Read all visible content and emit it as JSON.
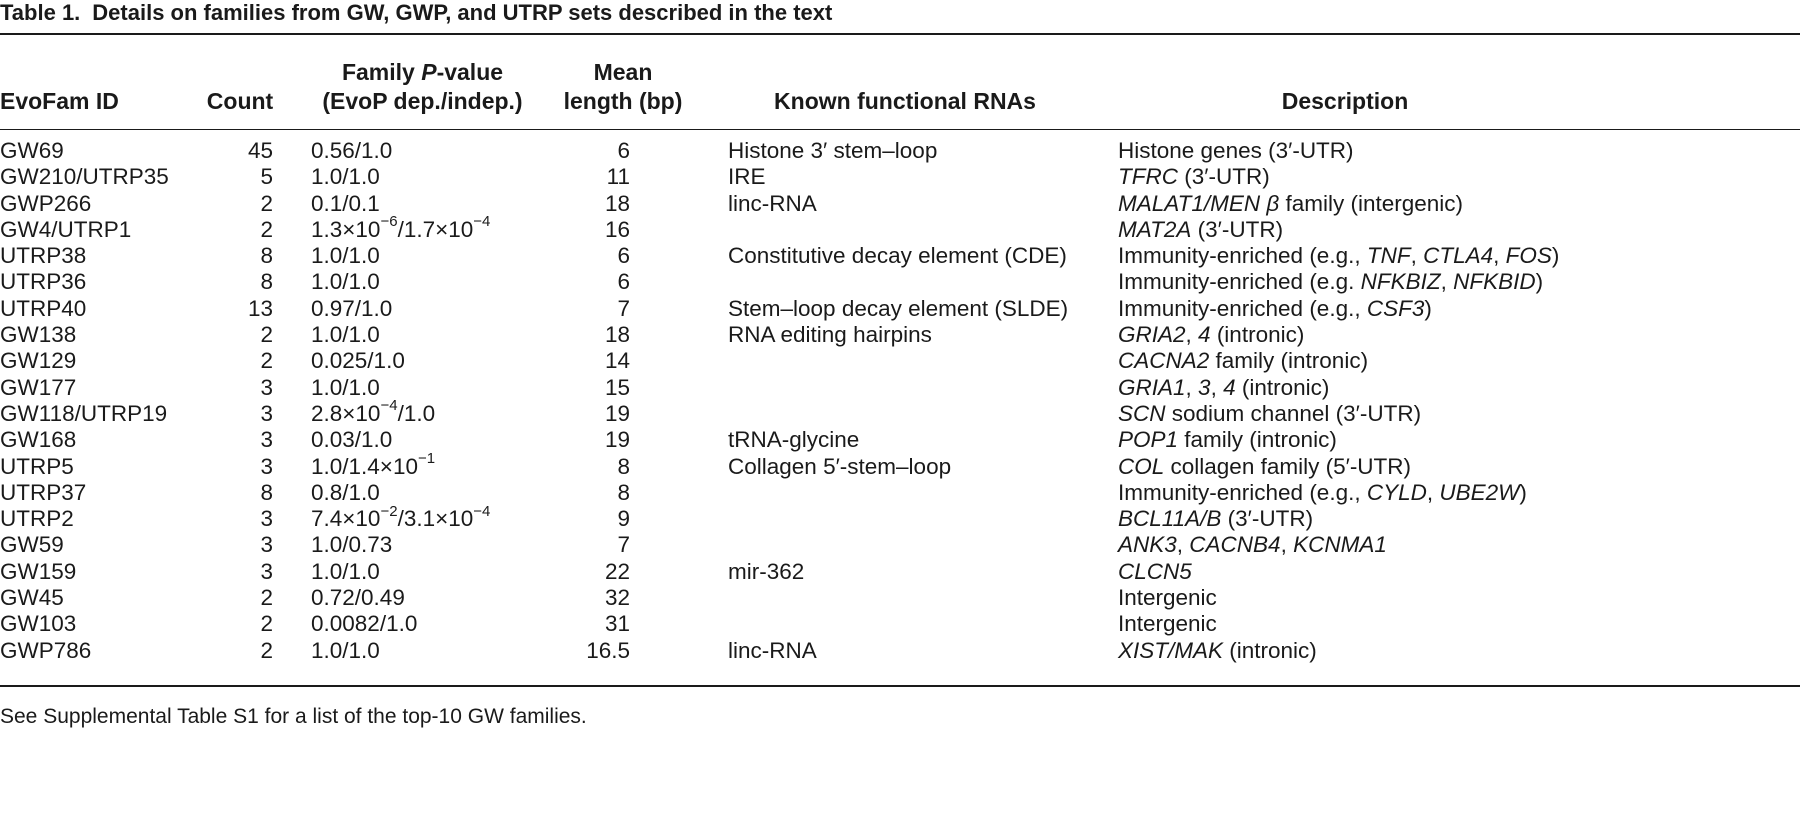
{
  "caption": {
    "label": "Table 1.",
    "title": "Details on families from GW, GWP, and UTRP sets described in the text"
  },
  "headers": {
    "id": "EvoFam ID",
    "count": "Count",
    "pval_line1": "Family P-value",
    "pval_line2": "(EvoP dep./indep.)",
    "len_line1": "Mean",
    "len_line2": "length (bp)",
    "known": "Known functional RNAs",
    "desc": "Description"
  },
  "rows": [
    {
      "id": "GW69",
      "count": "45",
      "pval": [
        {
          "t": "0.56/1.0"
        }
      ],
      "len": "6",
      "known": "Histone 3′ stem–loop",
      "desc": [
        {
          "t": "Histone genes (3′-UTR)"
        }
      ]
    },
    {
      "id": "GW210/UTRP35",
      "count": "5",
      "pval": [
        {
          "t": "1.0/1.0"
        }
      ],
      "len": "11",
      "known": "IRE",
      "desc": [
        {
          "t": "TFRC",
          "i": true
        },
        {
          "t": " (3′-UTR)"
        }
      ]
    },
    {
      "id": "GWP266",
      "count": "2",
      "pval": [
        {
          "t": "0.1/0.1"
        }
      ],
      "len": "18",
      "known": "linc-RNA",
      "desc": [
        {
          "t": "MALAT1/MEN β",
          "i": true
        },
        {
          "t": " family (intergenic)"
        }
      ]
    },
    {
      "id": "GW4/UTRP1",
      "count": "2",
      "pval": [
        {
          "t": "1.3×10"
        },
        {
          "t": "−6",
          "s": true
        },
        {
          "t": "/1.7×10"
        },
        {
          "t": "−4",
          "s": true
        }
      ],
      "len": "16",
      "known": "",
      "desc": [
        {
          "t": "MAT2A",
          "i": true
        },
        {
          "t": " (3′-UTR)"
        }
      ]
    },
    {
      "id": "UTRP38",
      "count": "8",
      "pval": [
        {
          "t": "1.0/1.0"
        }
      ],
      "len": "6",
      "known": "Constitutive decay element (CDE)",
      "desc": [
        {
          "t": "Immunity-enriched (e.g., "
        },
        {
          "t": "TNF",
          "i": true
        },
        {
          "t": ", "
        },
        {
          "t": "CTLA4",
          "i": true
        },
        {
          "t": ", "
        },
        {
          "t": "FOS",
          "i": true
        },
        {
          "t": ")"
        }
      ]
    },
    {
      "id": "UTRP36",
      "count": "8",
      "pval": [
        {
          "t": "1.0/1.0"
        }
      ],
      "len": "6",
      "known": "",
      "desc": [
        {
          "t": "Immunity-enriched (e.g. "
        },
        {
          "t": "NFKBIZ",
          "i": true
        },
        {
          "t": ", "
        },
        {
          "t": "NFKBID",
          "i": true
        },
        {
          "t": ")"
        }
      ]
    },
    {
      "id": "UTRP40",
      "count": "13",
      "pval": [
        {
          "t": "0.97/1.0"
        }
      ],
      "len": "7",
      "known": "Stem–loop decay element (SLDE)",
      "desc": [
        {
          "t": "Immunity-enriched (e.g., "
        },
        {
          "t": "CSF3",
          "i": true
        },
        {
          "t": ")"
        }
      ]
    },
    {
      "id": "GW138",
      "count": "2",
      "pval": [
        {
          "t": "1.0/1.0"
        }
      ],
      "len": "18",
      "known": "RNA editing hairpins",
      "desc": [
        {
          "t": "GRIA2",
          "i": true
        },
        {
          "t": ", "
        },
        {
          "t": "4",
          "i": true
        },
        {
          "t": " (intronic)"
        }
      ]
    },
    {
      "id": "GW129",
      "count": "2",
      "pval": [
        {
          "t": "0.025/1.0"
        }
      ],
      "len": "14",
      "known": "",
      "desc": [
        {
          "t": "CACNA2",
          "i": true
        },
        {
          "t": " family (intronic)"
        }
      ]
    },
    {
      "id": "GW177",
      "count": "3",
      "pval": [
        {
          "t": "1.0/1.0"
        }
      ],
      "len": "15",
      "known": "",
      "desc": [
        {
          "t": "GRIA1",
          "i": true
        },
        {
          "t": ", "
        },
        {
          "t": "3",
          "i": true
        },
        {
          "t": ", "
        },
        {
          "t": "4",
          "i": true
        },
        {
          "t": " (intronic)"
        }
      ]
    },
    {
      "id": "GW118/UTRP19",
      "count": "3",
      "pval": [
        {
          "t": "2.8×10"
        },
        {
          "t": "−4",
          "s": true
        },
        {
          "t": "/1.0"
        }
      ],
      "len": "19",
      "known": "",
      "desc": [
        {
          "t": "SCN",
          "i": true
        },
        {
          "t": " sodium channel (3′-UTR)"
        }
      ]
    },
    {
      "id": "GW168",
      "count": "3",
      "pval": [
        {
          "t": "0.03/1.0"
        }
      ],
      "len": "19",
      "known": "tRNA-glycine",
      "desc": [
        {
          "t": "POP1",
          "i": true
        },
        {
          "t": " family (intronic)"
        }
      ]
    },
    {
      "id": "UTRP5",
      "count": "3",
      "pval": [
        {
          "t": "1.0/1.4×10"
        },
        {
          "t": "−1",
          "s": true
        }
      ],
      "len": "8",
      "known": "Collagen 5′-stem–loop",
      "desc": [
        {
          "t": "COL",
          "i": true
        },
        {
          "t": " collagen family (5′-UTR)"
        }
      ]
    },
    {
      "id": "UTRP37",
      "count": "8",
      "pval": [
        {
          "t": "0.8/1.0"
        }
      ],
      "len": "8",
      "known": "",
      "desc": [
        {
          "t": "Immunity-enriched (e.g., "
        },
        {
          "t": "CYLD",
          "i": true
        },
        {
          "t": ", "
        },
        {
          "t": "UBE2W",
          "i": true
        },
        {
          "t": ")"
        }
      ]
    },
    {
      "id": "UTRP2",
      "count": "3",
      "pval": [
        {
          "t": "7.4×10"
        },
        {
          "t": "−2",
          "s": true
        },
        {
          "t": "/3.1×10"
        },
        {
          "t": "−4",
          "s": true
        }
      ],
      "len": "9",
      "known": "",
      "desc": [
        {
          "t": "BCL11A/B",
          "i": true
        },
        {
          "t": " (3′-UTR)"
        }
      ]
    },
    {
      "id": "GW59",
      "count": "3",
      "pval": [
        {
          "t": "1.0/0.73"
        }
      ],
      "len": "7",
      "known": "",
      "desc": [
        {
          "t": "ANK3",
          "i": true
        },
        {
          "t": ", "
        },
        {
          "t": "CACNB4",
          "i": true
        },
        {
          "t": ", "
        },
        {
          "t": "KCNMA1",
          "i": true
        }
      ]
    },
    {
      "id": "GW159",
      "count": "3",
      "pval": [
        {
          "t": "1.0/1.0"
        }
      ],
      "len": "22",
      "known": "mir-362",
      "desc": [
        {
          "t": "CLCN5",
          "i": true
        }
      ]
    },
    {
      "id": "GW45",
      "count": "2",
      "pval": [
        {
          "t": "0.72/0.49"
        }
      ],
      "len": "32",
      "known": "",
      "desc": [
        {
          "t": "Intergenic"
        }
      ]
    },
    {
      "id": "GW103",
      "count": "2",
      "pval": [
        {
          "t": "0.0082/1.0"
        }
      ],
      "len": "31",
      "known": "",
      "desc": [
        {
          "t": "Intergenic"
        }
      ]
    },
    {
      "id": "GWP786",
      "count": "2",
      "pval": [
        {
          "t": "1.0/1.0"
        }
      ],
      "len": "16.5",
      "known": "linc-RNA",
      "desc": [
        {
          "t": "XIST/MAK",
          "i": true
        },
        {
          "t": " (intronic)"
        }
      ]
    }
  ],
  "footnote": "See Supplemental Table S1 for a list of the top-10 GW families."
}
